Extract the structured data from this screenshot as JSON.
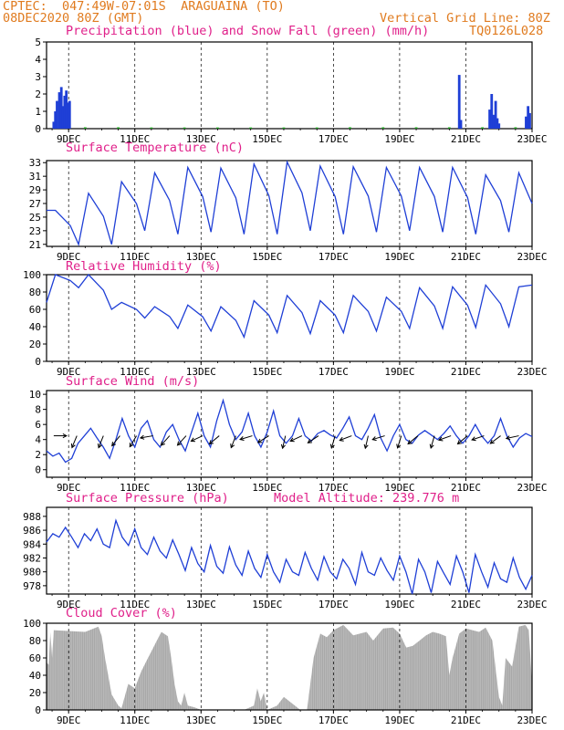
{
  "header": {
    "line1_left": "CPTEC:  047:49W-07:01S  ARAGUAINA (TO)",
    "line2_left": "08DEC2020 80Z (GMT)",
    "line2_right": "Vertical Grid Line: 80Z",
    "line3_right": "TQ0126L028"
  },
  "colors": {
    "header": "#e07b1f",
    "title": "#e0208a",
    "line": "#1f3fd6",
    "snow": "#1ea01e",
    "cloud": "#a8a8a8",
    "axis": "#000000"
  },
  "x_tick_labels": [
    "9DEC",
    "11DEC",
    "13DEC",
    "15DEC",
    "17DEC",
    "19DEC",
    "21DEC",
    "23DEC"
  ],
  "chart_data": [
    {
      "id": "precip",
      "type": "bar",
      "title": "Precipitation (blue) and Snow Fall (green) (mm/h)",
      "ylim": [
        0,
        5
      ],
      "yticks": [
        "0",
        "1",
        "2",
        "3",
        "4",
        "5"
      ],
      "x_range_days": [
        8.333,
        23
      ],
      "series": [
        {
          "name": "Precipitation",
          "color": "#1f3fd6",
          "x": [
            8.55,
            8.6,
            8.65,
            8.72,
            8.78,
            8.83,
            8.88,
            8.93,
            8.98,
            9.03,
            20.8,
            20.85,
            21.72,
            21.78,
            21.85,
            21.9,
            21.95,
            22.0,
            22.82,
            22.88,
            22.93
          ],
          "values": [
            0.4,
            1.0,
            1.6,
            2.1,
            2.4,
            1.3,
            1.9,
            2.2,
            1.5,
            1.6,
            3.1,
            0.5,
            1.1,
            2.0,
            0.8,
            1.6,
            0.6,
            0.3,
            0.7,
            1.3,
            0.9
          ]
        },
        {
          "name": "Snow Fall",
          "color": "#1ea01e",
          "x": [
            9.5,
            10.5,
            11.5,
            12.5,
            13.5,
            14.5,
            15.5,
            16.5,
            17.5,
            18.5,
            19.5,
            20.5,
            21.5,
            22.5
          ],
          "values": [
            0.08,
            0.08,
            0.07,
            0.07,
            0.07,
            0.07,
            0.07,
            0.07,
            0.08,
            0.08,
            0.08,
            0.08,
            0.08,
            0.08
          ]
        }
      ]
    },
    {
      "id": "temp",
      "type": "line",
      "title": "Surface Temperature (nC)",
      "ylim": [
        20.7,
        33.3
      ],
      "yticks": [
        "21",
        "23",
        "25",
        "27",
        "29",
        "31",
        "33"
      ],
      "x_range_days": [
        8.333,
        23
      ],
      "daily": [
        {
          "day": 8.333,
          "max": 26.0,
          "min": 25.0
        },
        {
          "day": 8.6,
          "max": 26.0,
          "min": 21.0
        },
        {
          "day": 9.6,
          "max": 28.5,
          "min": 21.0
        },
        {
          "day": 10.6,
          "max": 30.2,
          "min": 23.0
        },
        {
          "day": 11.6,
          "max": 31.5,
          "min": 22.5
        },
        {
          "day": 12.6,
          "max": 32.3,
          "min": 22.8
        },
        {
          "day": 13.6,
          "max": 32.2,
          "min": 22.5
        },
        {
          "day": 14.6,
          "max": 32.8,
          "min": 22.5
        },
        {
          "day": 15.6,
          "max": 33.1,
          "min": 23.0
        },
        {
          "day": 16.6,
          "max": 32.5,
          "min": 22.5
        },
        {
          "day": 17.6,
          "max": 32.4,
          "min": 22.8
        },
        {
          "day": 18.6,
          "max": 32.3,
          "min": 23.0
        },
        {
          "day": 19.6,
          "max": 32.3,
          "min": 22.8
        },
        {
          "day": 20.6,
          "max": 32.3,
          "min": 22.5
        },
        {
          "day": 21.6,
          "max": 31.2,
          "min": 22.8
        },
        {
          "day": 22.6,
          "max": 31.5,
          "min": 22.5
        },
        {
          "day": 23.0,
          "max": 27.0,
          "min": 27.0
        }
      ]
    },
    {
      "id": "rh",
      "type": "line",
      "title": "Relative Humidity (%)",
      "ylim": [
        0,
        100
      ],
      "yticks": [
        "0",
        "20",
        "40",
        "60",
        "80",
        "100"
      ],
      "x_range_days": [
        8.333,
        23
      ],
      "daily": [
        {
          "day": 8.333,
          "max": 68,
          "min": 68
        },
        {
          "day": 8.6,
          "max": 100,
          "min": 85
        },
        {
          "day": 9.6,
          "max": 100,
          "min": 60
        },
        {
          "day": 10.6,
          "max": 68,
          "min": 50
        },
        {
          "day": 11.6,
          "max": 63,
          "min": 38
        },
        {
          "day": 12.6,
          "max": 65,
          "min": 35
        },
        {
          "day": 13.6,
          "max": 63,
          "min": 28
        },
        {
          "day": 14.6,
          "max": 70,
          "min": 33
        },
        {
          "day": 15.6,
          "max": 76,
          "min": 32
        },
        {
          "day": 16.6,
          "max": 70,
          "min": 33
        },
        {
          "day": 17.6,
          "max": 76,
          "min": 35
        },
        {
          "day": 18.6,
          "max": 74,
          "min": 38
        },
        {
          "day": 19.6,
          "max": 85,
          "min": 38
        },
        {
          "day": 20.6,
          "max": 86,
          "min": 39
        },
        {
          "day": 21.6,
          "max": 88,
          "min": 40
        },
        {
          "day": 22.6,
          "max": 86,
          "min": 40
        },
        {
          "day": 23.0,
          "max": 88,
          "min": 88
        }
      ]
    },
    {
      "id": "wind",
      "type": "line",
      "title": "Surface Wind (m/s)",
      "ylim": [
        -1,
        10.5
      ],
      "yticks": [
        "0",
        "2",
        "4",
        "6",
        "8",
        "10"
      ],
      "x_range_days": [
        8.333,
        23
      ],
      "speed": [
        2.5,
        1.8,
        2.2,
        1.0,
        1.5,
        3.5,
        4.5,
        5.5,
        4.2,
        3.0,
        1.5,
        4.0,
        6.8,
        4.5,
        3.0,
        5.5,
        6.5,
        4.0,
        3.0,
        5.0,
        6.0,
        4.0,
        2.5,
        5.0,
        7.5,
        4.5,
        3.0,
        6.5,
        9.2,
        6.0,
        4.0,
        5.0,
        7.5,
        4.5,
        3.0,
        5.0,
        7.8,
        4.5,
        3.5,
        4.5,
        6.8,
        4.5,
        3.8,
        4.8,
        5.2,
        4.6,
        4.2,
        5.5,
        7.0,
        4.5,
        4.0,
        5.5,
        7.3,
        4.2,
        2.5,
        4.5,
        6.0,
        4.0,
        3.5,
        4.6,
        5.2,
        4.6,
        4.0,
        4.8,
        5.8,
        4.5,
        3.5,
        4.5,
        6.0,
        4.5,
        3.5,
        4.5,
        6.8,
        4.5,
        3.0,
        4.2,
        4.8,
        4.4
      ],
      "arrows": [
        {
          "day": 8.55,
          "u": 1.0,
          "v": 0.0
        },
        {
          "day": 9.25,
          "u": -0.5,
          "v": -1.2
        },
        {
          "day": 10.05,
          "u": -0.4,
          "v": -1.0
        },
        {
          "day": 10.55,
          "u": -0.8,
          "v": -1.0
        },
        {
          "day": 11.05,
          "u": -0.6,
          "v": -1.0
        },
        {
          "day": 11.55,
          "u": -1.2,
          "v": -0.2
        },
        {
          "day": 12.05,
          "u": -0.8,
          "v": -0.9
        },
        {
          "day": 12.55,
          "u": -1.0,
          "v": -1.1
        },
        {
          "day": 13.05,
          "u": -1.3,
          "v": -0.6
        },
        {
          "day": 13.55,
          "u": -1.2,
          "v": -1.0
        },
        {
          "day": 14.05,
          "u": -0.5,
          "v": -1.3
        },
        {
          "day": 14.55,
          "u": -1.0,
          "v": -0.3
        },
        {
          "day": 15.05,
          "u": -1.3,
          "v": -0.8
        },
        {
          "day": 15.55,
          "u": -0.3,
          "v": -1.3
        },
        {
          "day": 16.05,
          "u": -1.3,
          "v": -0.6
        },
        {
          "day": 16.55,
          "u": -1.2,
          "v": -0.8
        },
        {
          "day": 17.05,
          "u": -0.4,
          "v": -1.4
        },
        {
          "day": 17.55,
          "u": -1.3,
          "v": -0.5
        },
        {
          "day": 18.05,
          "u": -0.3,
          "v": -1.3
        },
        {
          "day": 18.55,
          "u": -1.3,
          "v": -0.4
        },
        {
          "day": 19.05,
          "u": -0.4,
          "v": -1.3
        },
        {
          "day": 19.55,
          "u": -1.2,
          "v": -1.0
        },
        {
          "day": 20.05,
          "u": -0.4,
          "v": -1.4
        },
        {
          "day": 20.55,
          "u": -1.4,
          "v": -0.5
        },
        {
          "day": 21.05,
          "u": -1.2,
          "v": -1.0
        },
        {
          "day": 21.55,
          "u": -1.5,
          "v": -0.5
        },
        {
          "day": 22.05,
          "u": -1.2,
          "v": -0.9
        },
        {
          "day": 22.6,
          "u": -1.4,
          "v": -0.3
        }
      ]
    },
    {
      "id": "press",
      "type": "line",
      "title": "Surface Pressure (hPa)",
      "annotation": "Model Altitude: 239.776 m",
      "ylim": [
        976.8,
        989.3
      ],
      "yticks": [
        "978",
        "980",
        "982",
        "984",
        "986",
        "988"
      ],
      "x_range_days": [
        8.333,
        23
      ],
      "values": [
        984.3,
        985.5,
        985.0,
        986.4,
        985.0,
        983.5,
        985.5,
        984.5,
        986.2,
        984.0,
        983.5,
        987.4,
        985.0,
        983.8,
        986.2,
        983.5,
        982.5,
        985.0,
        983.0,
        982.0,
        984.6,
        982.5,
        980.2,
        983.5,
        981.2,
        980.0,
        983.8,
        980.8,
        979.8,
        983.6,
        981.0,
        979.5,
        983.0,
        980.5,
        979.2,
        982.5,
        980.0,
        978.5,
        981.8,
        980.0,
        979.5,
        982.8,
        980.5,
        978.8,
        982.2,
        980.0,
        979.0,
        981.8,
        980.5,
        978.2,
        982.8,
        980.0,
        979.5,
        982.0,
        980.2,
        978.8,
        982.3,
        980.0,
        976.8,
        981.8,
        980.0,
        977.0,
        981.5,
        979.8,
        978.2,
        982.3,
        980.0,
        977.0,
        982.5,
        980.0,
        977.8,
        981.3,
        979.0,
        978.5,
        982.0,
        979.2,
        977.5,
        979.5
      ]
    },
    {
      "id": "cloud",
      "type": "area",
      "title": "Cloud Cover (%)",
      "ylim": [
        0,
        100
      ],
      "yticks": [
        "0",
        "20",
        "40",
        "60",
        "80",
        "100"
      ],
      "x_range_days": [
        8.333,
        23
      ],
      "day": [
        8.333,
        8.4,
        8.45,
        8.5,
        8.55,
        9.0,
        9.5,
        9.9,
        10.0,
        10.1,
        10.3,
        10.5,
        10.6,
        10.8,
        11.0,
        11.2,
        11.4,
        11.6,
        11.8,
        12.0,
        12.1,
        12.2,
        12.3,
        12.4,
        12.5,
        12.6,
        12.8,
        13.0,
        13.4,
        13.8,
        14.0,
        14.3,
        14.6,
        14.7,
        14.8,
        14.9,
        15.0,
        15.3,
        15.5,
        16.0,
        16.2,
        16.4,
        16.6,
        16.8,
        17.0,
        17.3,
        17.6,
        18.0,
        18.2,
        18.5,
        18.8,
        19.0,
        19.2,
        19.4,
        19.6,
        19.8,
        20.0,
        20.2,
        20.4,
        20.5,
        20.6,
        20.8,
        21.0,
        21.2,
        21.4,
        21.6,
        21.8,
        22.0,
        22.1,
        22.2,
        22.4,
        22.6,
        22.8,
        22.9,
        23.0
      ],
      "values": [
        55,
        52,
        90,
        60,
        92,
        91,
        90,
        96,
        85,
        60,
        18,
        5,
        2,
        30,
        25,
        45,
        60,
        75,
        90,
        85,
        60,
        30,
        10,
        5,
        20,
        5,
        3,
        0,
        0,
        0,
        0,
        0,
        5,
        25,
        10,
        20,
        0,
        5,
        15,
        0,
        0,
        60,
        88,
        84,
        92,
        98,
        86,
        90,
        80,
        94,
        95,
        88,
        72,
        74,
        80,
        86,
        90,
        88,
        85,
        40,
        60,
        88,
        94,
        92,
        90,
        95,
        80,
        15,
        5,
        60,
        50,
        96,
        98,
        92,
        30
      ]
    }
  ]
}
